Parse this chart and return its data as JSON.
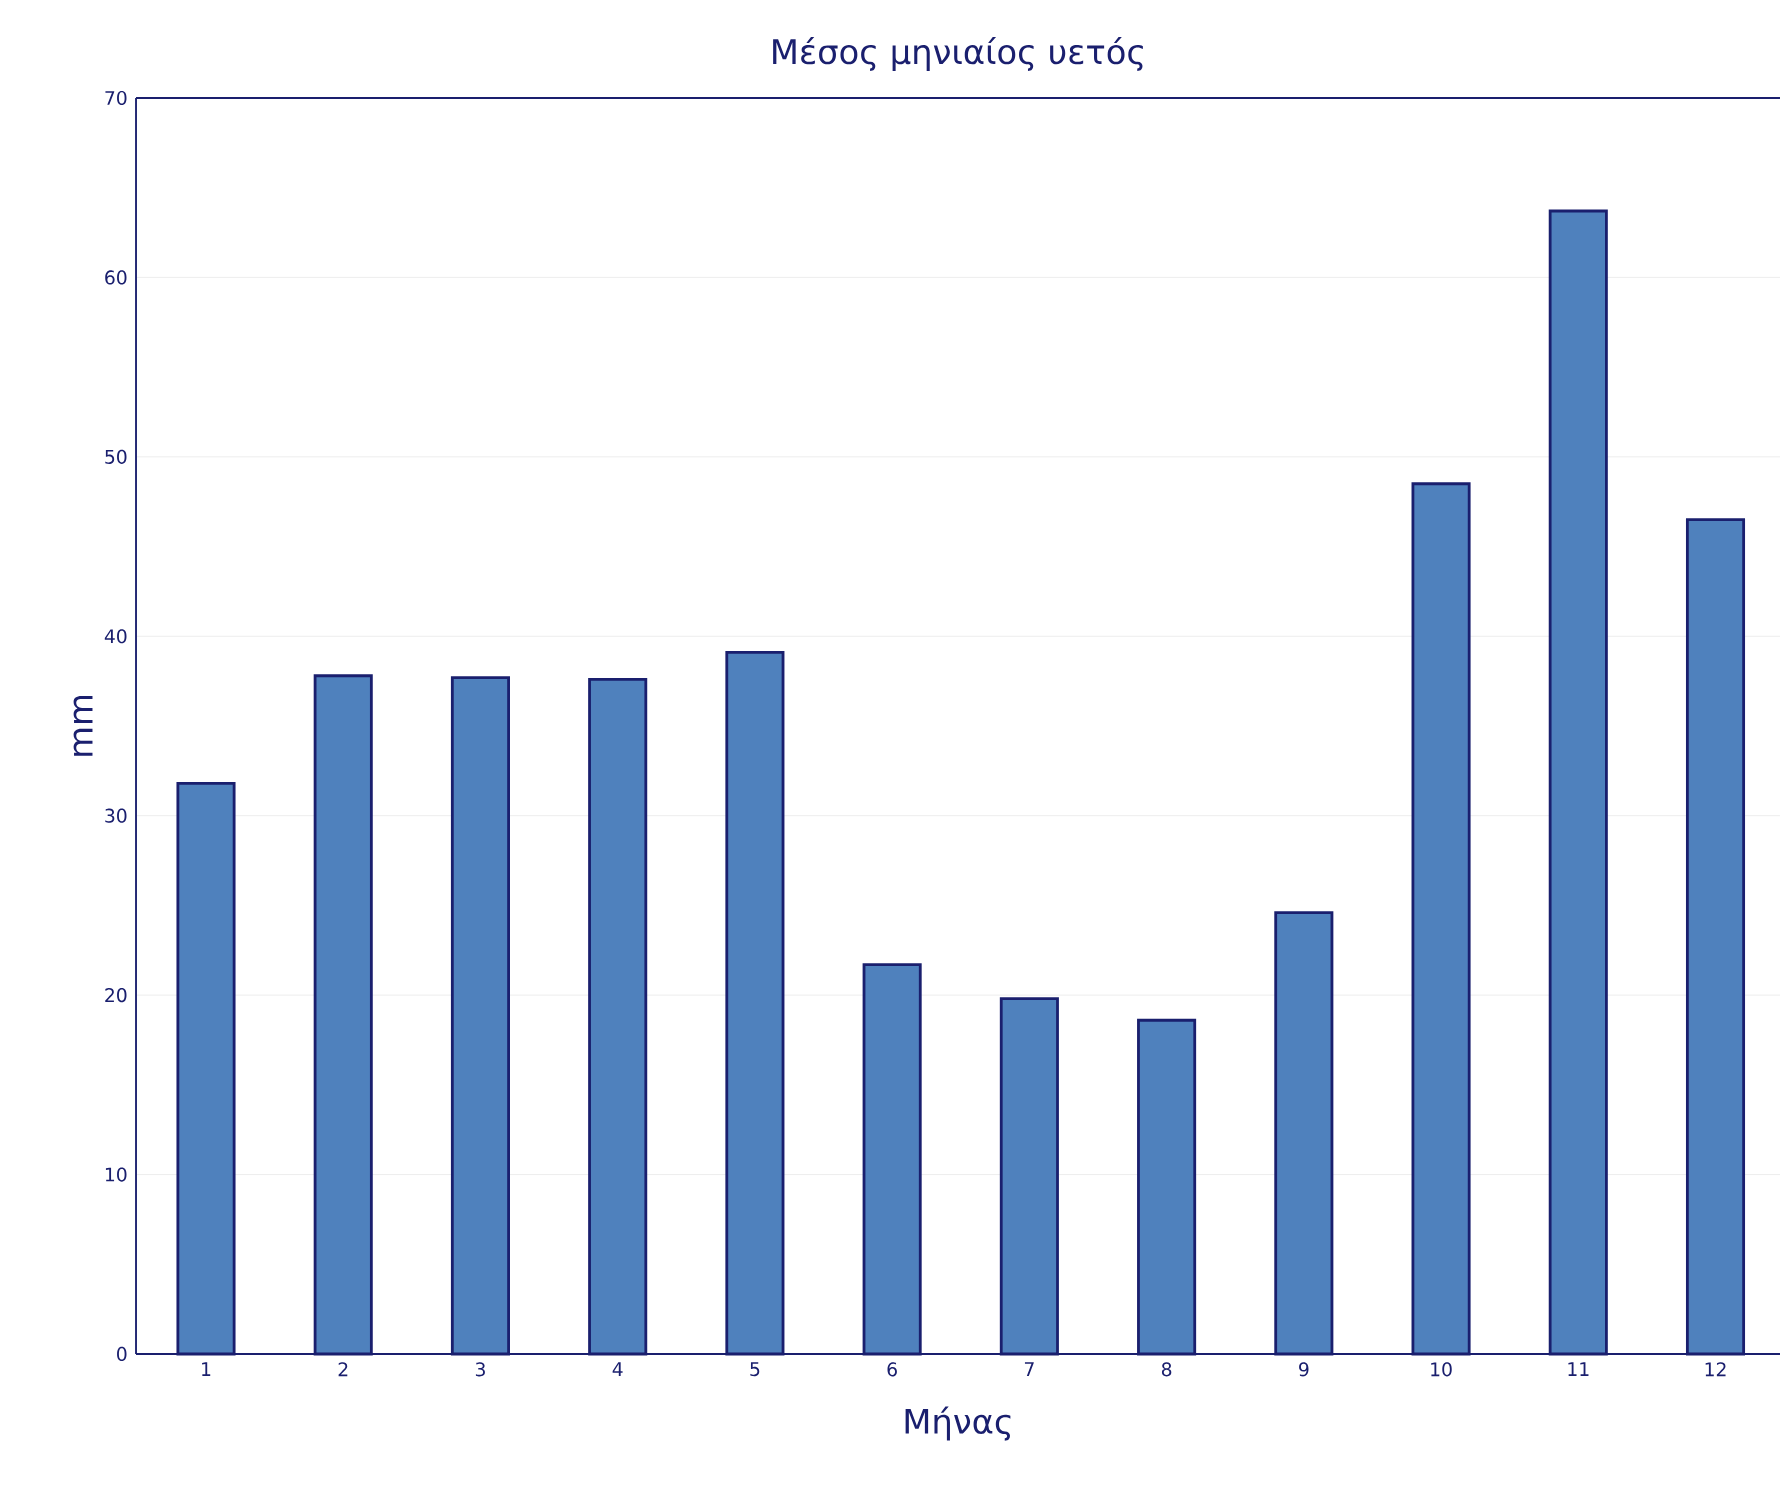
{
  "chart_data": {
    "type": "bar",
    "title": "Μέσος μηνιαίος υετός",
    "xlabel": "Μήνας",
    "ylabel": "mm",
    "categories": [
      "1",
      "2",
      "3",
      "4",
      "5",
      "6",
      "7",
      "8",
      "9",
      "10",
      "11",
      "12"
    ],
    "values": [
      31.8,
      37.8,
      37.7,
      37.6,
      39.1,
      21.7,
      19.8,
      18.6,
      24.6,
      48.5,
      63.7,
      46.5
    ],
    "color": "#4f81bd",
    "ylim": [
      0,
      70
    ],
    "yticks": [
      0,
      10,
      20,
      30,
      40,
      50,
      60,
      70
    ],
    "grid": "y"
  }
}
